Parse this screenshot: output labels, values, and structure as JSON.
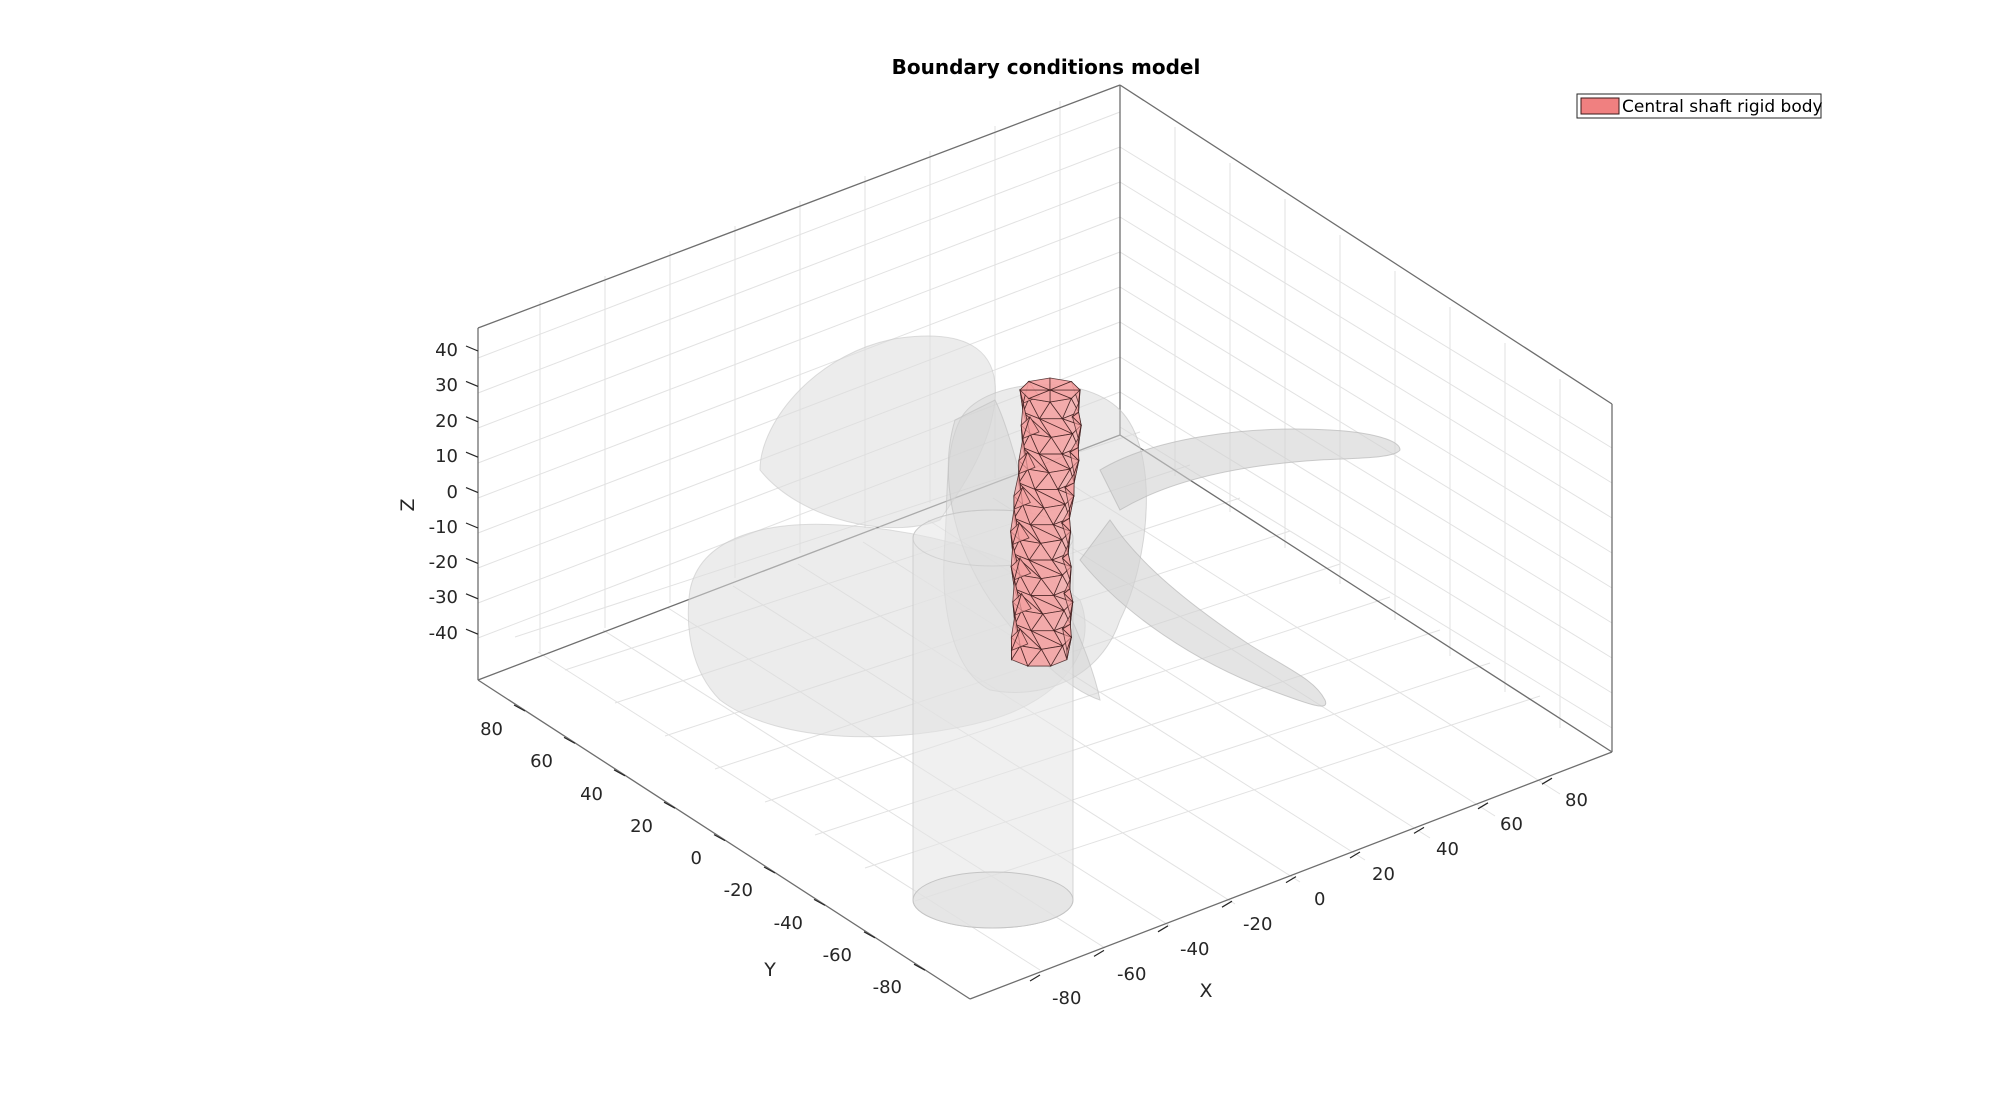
{
  "title": "Boundary conditions model",
  "legend": {
    "entry": "Central shaft rigid body",
    "swatch_color": "#f08080"
  },
  "axes": {
    "x": {
      "label": "X",
      "ticks": [
        "-80",
        "-60",
        "-40",
        "-20",
        "0",
        "20",
        "40",
        "60",
        "80"
      ]
    },
    "y": {
      "label": "Y",
      "ticks": [
        "-80",
        "-60",
        "-40",
        "-20",
        "0",
        "20",
        "40",
        "60",
        "80"
      ]
    },
    "z": {
      "label": "Z",
      "ticks": [
        "40",
        "30",
        "20",
        "10",
        "0",
        "-10",
        "-20",
        "-30",
        "-40"
      ]
    },
    "grid": true
  },
  "colors": {
    "propeller": "#dcdcdc",
    "shaft": "#f4a0a0",
    "shaft_edge": "#3a1a1a",
    "axis": "#262626"
  }
}
